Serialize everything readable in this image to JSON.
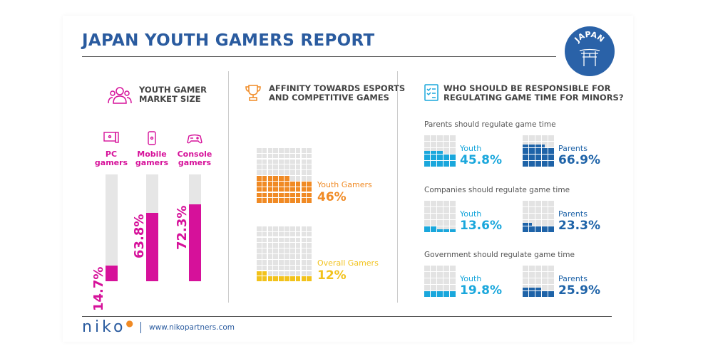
{
  "header": {
    "title": "JAPAN YOUTH GAMERS REPORT",
    "badge": "JAPAN",
    "badge_icon": "torii-gate-icon"
  },
  "colors": {
    "magenta": "#d6119a",
    "orange": "#f08a24",
    "yellow": "#f2c21b",
    "light_blue": "#1aa7dc",
    "dark_blue": "#1e63a8",
    "title_blue": "#2a5b9f",
    "empty": "#e3e3e3"
  },
  "market": {
    "title_line1": "YOUTH GAMER",
    "title_line2": "MARKET SIZE",
    "bars": [
      {
        "label1": "PC",
        "label2": "gamers",
        "icon": "pc-icon",
        "value": 14.7,
        "text": "14.7%"
      },
      {
        "label1": "Mobile",
        "label2": "gamers",
        "icon": "mobile-icon",
        "value": 63.8,
        "text": "63.8%"
      },
      {
        "label1": "Console",
        "label2": "gamers",
        "icon": "gamepad-icon",
        "value": 72.3,
        "text": "72.3%"
      }
    ]
  },
  "esports": {
    "title_line1": "AFFINITY TOWARDS ESPORTS",
    "title_line2": "AND COMPETITIVE GAMES",
    "items": [
      {
        "label": "Youth Gamers",
        "value": 46,
        "text": "46%",
        "color": "#f08a24"
      },
      {
        "label": "Overall Gamers",
        "value": 12,
        "text": "12%",
        "color": "#f2c21b"
      }
    ]
  },
  "responsibility": {
    "title_line1": "WHO SHOULD BE RESPONSIBLE FOR",
    "title_line2": "REGULATING GAME TIME FOR MINORS?",
    "groups": [
      {
        "subtitle": "Parents should regulate game time",
        "youth": {
          "label": "Youth",
          "value": 45.8,
          "text": "45.8%"
        },
        "parents": {
          "label": "Parents",
          "value": 66.9,
          "text": "66.9%"
        }
      },
      {
        "subtitle": "Companies should regulate game time",
        "youth": {
          "label": "Youth",
          "value": 13.6,
          "text": "13.6%"
        },
        "parents": {
          "label": "Parents",
          "value": 23.3,
          "text": "23.3%"
        }
      },
      {
        "subtitle": "Government should regulate game time",
        "youth": {
          "label": "Youth",
          "value": 19.8,
          "text": "19.8%"
        },
        "parents": {
          "label": "Parents",
          "value": 25.9,
          "text": "25.9%"
        }
      }
    ]
  },
  "footer": {
    "logo": "niko",
    "url": "www.nikopartners.com"
  }
}
